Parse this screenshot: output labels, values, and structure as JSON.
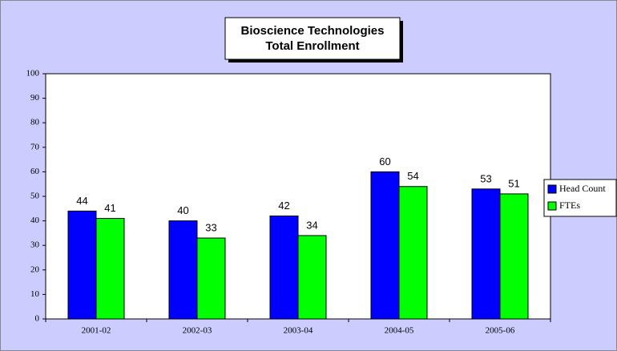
{
  "chart_data": {
    "type": "bar",
    "title": [
      "Bioscience Technologies",
      "Total Enrollment"
    ],
    "categories": [
      "2001-02",
      "2002-03",
      "2003-04",
      "2004-05",
      "2005-06"
    ],
    "series": [
      {
        "name": "Head Count",
        "color": "#0000ff",
        "values": [
          44,
          40,
          42,
          60,
          53
        ]
      },
      {
        "name": "FTEs",
        "color": "#00ff00",
        "values": [
          41,
          33,
          34,
          54,
          51
        ]
      }
    ],
    "ylim": [
      0,
      100
    ],
    "yticks": [
      0,
      10,
      20,
      30,
      40,
      50,
      60,
      70,
      80,
      90,
      100
    ],
    "legend": "right"
  }
}
